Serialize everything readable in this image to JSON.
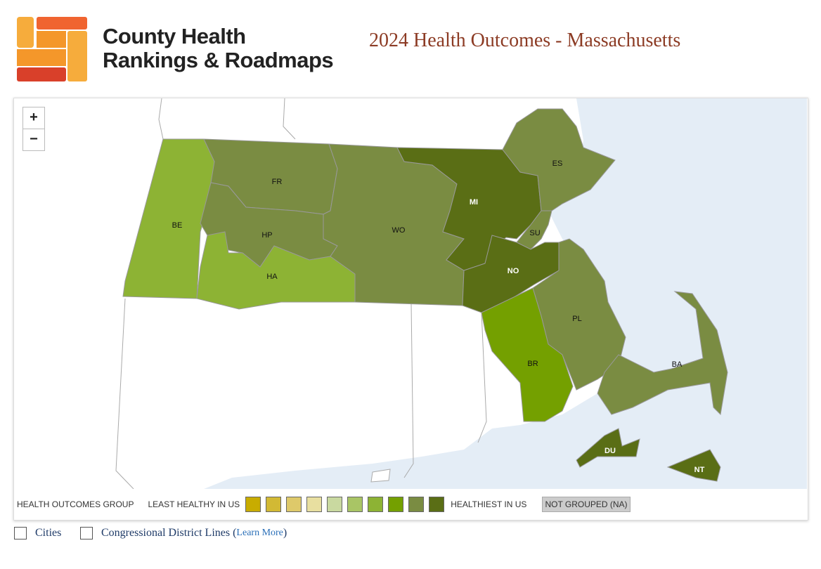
{
  "header": {
    "logo_line1": "County Health",
    "logo_line2": "Rankings & Roadmaps",
    "title": "2024 Health Outcomes - Massachusetts"
  },
  "map": {
    "zoom_in": "+",
    "zoom_out": "−",
    "counties": [
      {
        "label": "BE",
        "color": "#8db334"
      },
      {
        "label": "FR",
        "color": "#7a8c42"
      },
      {
        "label": "HP",
        "color": "#7a8c42"
      },
      {
        "label": "HA",
        "color": "#8db334"
      },
      {
        "label": "WO",
        "color": "#7a8c42"
      },
      {
        "label": "MI",
        "color": "#5a6e15"
      },
      {
        "label": "ES",
        "color": "#7a8c42"
      },
      {
        "label": "SU",
        "color": "#7a8c42"
      },
      {
        "label": "NO",
        "color": "#5a6e15"
      },
      {
        "label": "PL",
        "color": "#7a8c42"
      },
      {
        "label": "BR",
        "color": "#74a000"
      },
      {
        "label": "BA",
        "color": "#7a8c42"
      },
      {
        "label": "DU",
        "color": "#5a6e15"
      },
      {
        "label": "NT",
        "color": "#5a6e15"
      }
    ]
  },
  "legend": {
    "title": "HEALTH OUTCOMES GROUP",
    "low": "LEAST HEALTHY IN US",
    "colors": [
      "#c8ac00",
      "#d2b934",
      "#dec96a",
      "#e8dfa0",
      "#c9d9a0",
      "#a9c565",
      "#8db334",
      "#74a000",
      "#7a8c42",
      "#5a6e15"
    ],
    "high": "HEALTHIEST IN US",
    "na": "NOT GROUPED (NA)"
  },
  "options": {
    "cities": "Cities",
    "districts": "Congressional District Lines",
    "open": "(",
    "link": "Learn More",
    "close": ")"
  }
}
